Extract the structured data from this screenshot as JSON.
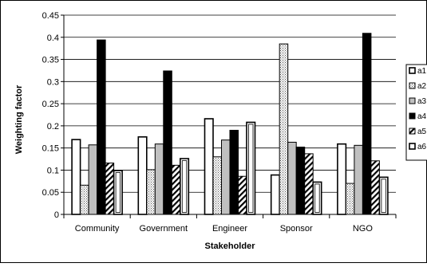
{
  "chart_data": {
    "type": "bar",
    "title": "",
    "xlabel": "Stakeholder",
    "ylabel": "Weighting factor",
    "categories": [
      "Community",
      "Government",
      "Engineer",
      "Sponsor",
      "NGO"
    ],
    "ylim": [
      0,
      0.45
    ],
    "yticks": [
      0,
      0.05,
      0.1,
      0.15,
      0.2,
      0.25,
      0.3,
      0.35,
      0.4,
      0.45
    ],
    "ytick_labels": [
      "0",
      "0.05",
      "0.1",
      "0.15",
      "0.2",
      "0.25",
      "0.3",
      "0.35",
      "0.4",
      "0.45"
    ],
    "grid": true,
    "legend_position": "right",
    "series": [
      {
        "name": "a1",
        "pattern": "white",
        "values": [
          0.169,
          0.175,
          0.216,
          0.089,
          0.159
        ]
      },
      {
        "name": "a2",
        "pattern": "dots",
        "values": [
          0.066,
          0.101,
          0.13,
          0.385,
          0.07
        ]
      },
      {
        "name": "a3",
        "pattern": "lightgray",
        "values": [
          0.157,
          0.159,
          0.168,
          0.163,
          0.156
        ]
      },
      {
        "name": "a4",
        "pattern": "black",
        "values": [
          0.394,
          0.324,
          0.19,
          0.152,
          0.409
        ]
      },
      {
        "name": "a5",
        "pattern": "diagonal",
        "values": [
          0.116,
          0.111,
          0.086,
          0.137,
          0.121
        ]
      },
      {
        "name": "a6",
        "pattern": "framed",
        "values": [
          0.099,
          0.126,
          0.208,
          0.073,
          0.084
        ]
      }
    ]
  }
}
